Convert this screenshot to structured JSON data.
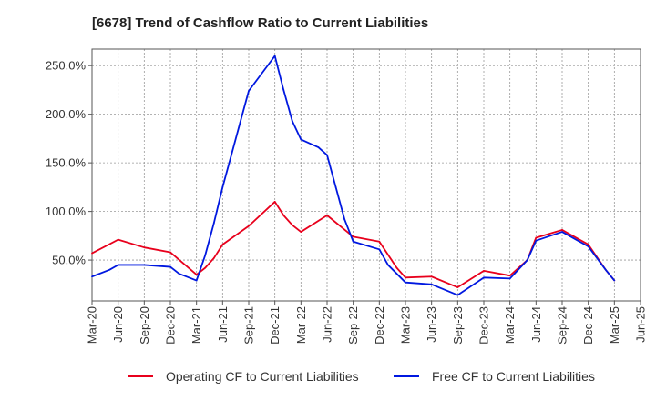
{
  "chart_data": {
    "type": "line",
    "title": "[6678]  Trend of Cashflow Ratio to Current Liabilities",
    "xlabel": "",
    "ylabel": "",
    "x_tick_labels": [
      "Mar-20",
      "Jun-20",
      "Sep-20",
      "Dec-20",
      "Mar-21",
      "Jun-21",
      "Sep-21",
      "Dec-21",
      "Mar-22",
      "Jun-22",
      "Sep-22",
      "Dec-22",
      "Mar-23",
      "Jun-23",
      "Sep-23",
      "Dec-23",
      "Mar-24",
      "Jun-24",
      "Sep-24",
      "Dec-24",
      "Mar-25",
      "Jun-25"
    ],
    "y_tick_values": [
      50,
      100,
      150,
      200,
      250
    ],
    "y_tick_labels": [
      "50.0%",
      "100.0%",
      "150.0%",
      "200.0%",
      "250.0%"
    ],
    "ylim": [
      8,
      267
    ],
    "grid": true,
    "legend_position": "bottom",
    "x": [
      "Mar-20",
      "Apr-20",
      "May-20",
      "Jun-20",
      "Jul-20",
      "Aug-20",
      "Sep-20",
      "Oct-20",
      "Nov-20",
      "Dec-20",
      "Jan-21",
      "Feb-21",
      "Mar-21",
      "Apr-21",
      "May-21",
      "Jun-21",
      "Jul-21",
      "Aug-21",
      "Sep-21",
      "Oct-21",
      "Nov-21",
      "Dec-21",
      "Jan-22",
      "Feb-22",
      "Mar-22",
      "Apr-22",
      "May-22",
      "Jun-22",
      "Jul-22",
      "Aug-22",
      "Sep-22",
      "Oct-22",
      "Nov-22",
      "Dec-22",
      "Jan-23",
      "Feb-23",
      "Mar-23",
      "Apr-23",
      "May-23",
      "Jun-23",
      "Jul-23",
      "Aug-23",
      "Sep-23",
      "Oct-23",
      "Nov-23",
      "Dec-23",
      "Jan-24",
      "Feb-24",
      "Mar-24",
      "Apr-24",
      "May-24",
      "Jun-24",
      "Jul-24",
      "Aug-24",
      "Sep-24",
      "Oct-24",
      "Nov-24",
      "Dec-24",
      "Jan-25",
      "Feb-25",
      "Mar-25"
    ],
    "series": [
      {
        "name": "Operating CF to Current Liabilities",
        "color": "#e8001c",
        "points": [
          [
            "Mar-20",
            57
          ],
          [
            "Jun-20",
            71
          ],
          [
            "Sep-20",
            63
          ],
          [
            "Dec-20",
            58
          ],
          [
            "Mar-21",
            35
          ],
          [
            "Apr-21",
            42
          ],
          [
            "May-21",
            52
          ],
          [
            "Jun-21",
            66
          ],
          [
            "Sep-21",
            85
          ],
          [
            "Dec-21",
            110
          ],
          [
            "Jan-22",
            96
          ],
          [
            "Feb-22",
            86
          ],
          [
            "Mar-22",
            79
          ],
          [
            "Jun-22",
            96
          ],
          [
            "Sep-22",
            74
          ],
          [
            "Dec-22",
            69
          ],
          [
            "Feb-23",
            42
          ],
          [
            "Mar-23",
            32
          ],
          [
            "Jun-23",
            33
          ],
          [
            "Sep-23",
            22
          ],
          [
            "Dec-23",
            39
          ],
          [
            "Mar-24",
            34
          ],
          [
            "May-24",
            50
          ],
          [
            "Jun-24",
            73
          ],
          [
            "Sep-24",
            81
          ],
          [
            "Dec-24",
            66
          ],
          [
            "Feb-25",
            40
          ],
          [
            "Mar-25",
            29
          ]
        ]
      },
      {
        "name": "Free CF to Current Liabilities",
        "color": "#0018e0",
        "points": [
          [
            "Mar-20",
            33
          ],
          [
            "May-20",
            40
          ],
          [
            "Jun-20",
            45
          ],
          [
            "Sep-20",
            45
          ],
          [
            "Dec-20",
            43
          ],
          [
            "Jan-21",
            36
          ],
          [
            "Mar-21",
            29
          ],
          [
            "Apr-21",
            55
          ],
          [
            "May-21",
            88
          ],
          [
            "Jun-21",
            125
          ],
          [
            "Jul-21",
            158
          ],
          [
            "Aug-21",
            191
          ],
          [
            "Sep-21",
            224
          ],
          [
            "Dec-21",
            260
          ],
          [
            "Jan-22",
            225
          ],
          [
            "Feb-22",
            193
          ],
          [
            "Mar-22",
            174
          ],
          [
            "May-22",
            166
          ],
          [
            "Jun-22",
            158
          ],
          [
            "Jul-22",
            125
          ],
          [
            "Aug-22",
            92
          ],
          [
            "Sep-22",
            69
          ],
          [
            "Dec-22",
            61
          ],
          [
            "Jan-23",
            45
          ],
          [
            "Mar-23",
            27
          ],
          [
            "Jun-23",
            25
          ],
          [
            "Sep-23",
            14
          ],
          [
            "Dec-23",
            32
          ],
          [
            "Mar-24",
            31
          ],
          [
            "May-24",
            50
          ],
          [
            "Jun-24",
            70
          ],
          [
            "Sep-24",
            79
          ],
          [
            "Dec-24",
            64
          ],
          [
            "Feb-25",
            40
          ],
          [
            "Mar-25",
            29
          ]
        ]
      }
    ]
  }
}
